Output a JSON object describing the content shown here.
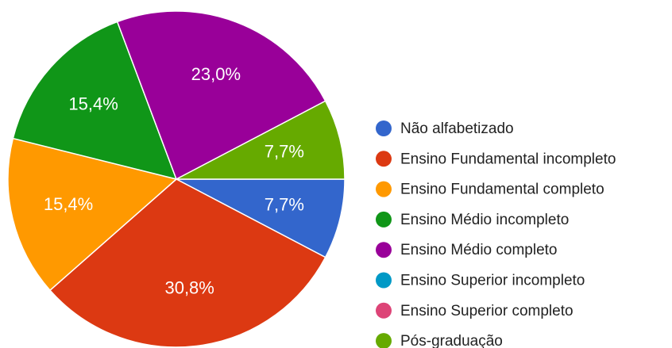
{
  "chart_data": {
    "type": "pie",
    "categories": [
      "Não alfabetizado",
      "Ensino Fundamental incompleto",
      "Ensino Fundamental completo",
      "Ensino Médio incompleto",
      "Ensino Médio completo",
      "Ensino Superior incompleto",
      "Ensino Superior completo",
      "Pós-graduação"
    ],
    "values": [
      7.7,
      30.8,
      15.4,
      15.4,
      23.0,
      0,
      0,
      7.7
    ],
    "value_labels": [
      "7,7%",
      "30,8%",
      "15,4%",
      "15,4%",
      "23,0%",
      null,
      null,
      "7,7%"
    ],
    "colors": [
      "#3366cc",
      "#dc3912",
      "#ff9900",
      "#109618",
      "#990099",
      "#0099c6",
      "#dd4477",
      "#66aa00"
    ],
    "legend": "right"
  }
}
